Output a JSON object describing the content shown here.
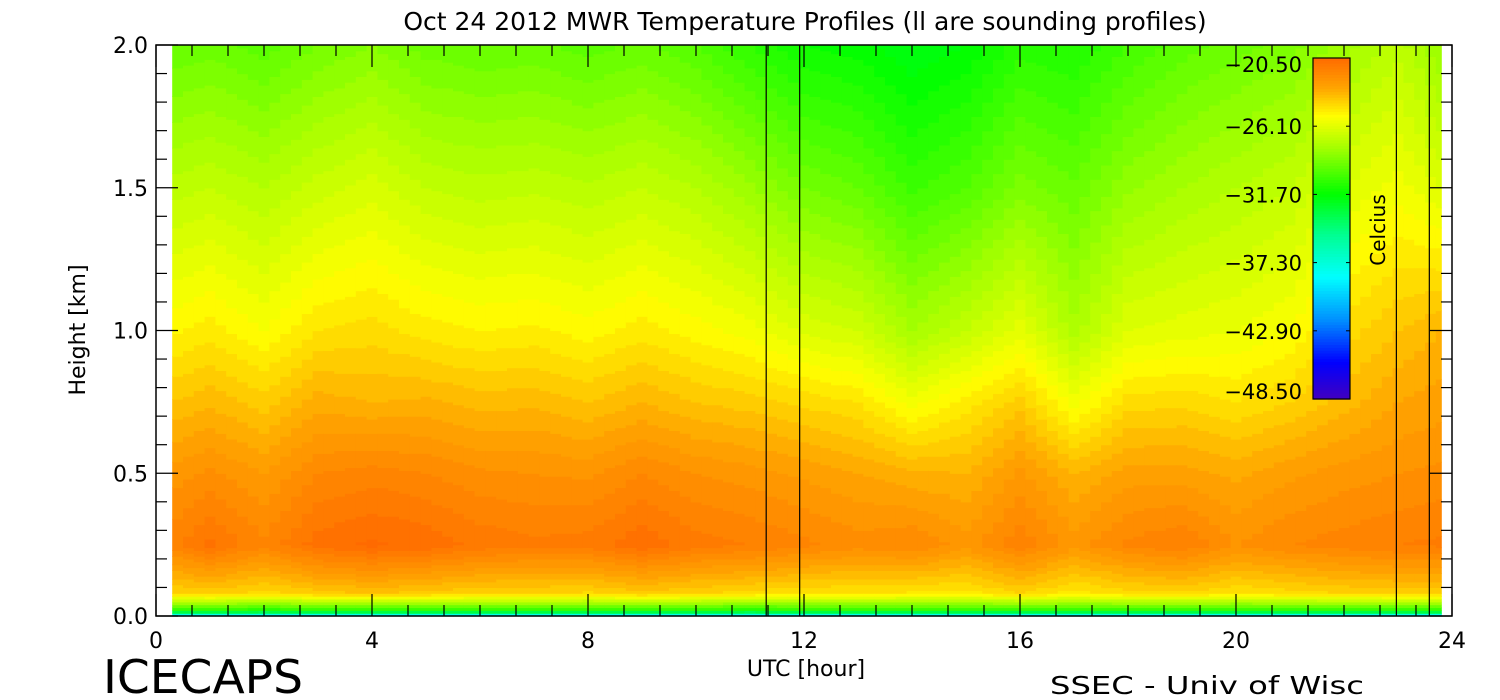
{
  "chart_data": {
    "type": "heatmap",
    "title": "Oct 24 2012 MWR Temperature Profiles (ll are sounding profiles)",
    "xlabel": "UTC [hour]",
    "ylabel": "Height [km]",
    "xlim": [
      0,
      24
    ],
    "ylim": [
      0,
      2.0
    ],
    "x_ticks": [
      "0",
      "4",
      "8",
      "12",
      "16",
      "20",
      "24"
    ],
    "y_ticks": [
      "0.0",
      "0.5",
      "1.0",
      "1.5",
      "2.0"
    ],
    "colorbar": {
      "label": "Celcius",
      "range": [
        -48.5,
        -20.5
      ],
      "ticks": [
        "-20.50",
        "-26.10",
        "-31.70",
        "-37.30",
        "-42.90",
        "-48.50"
      ]
    },
    "sounding_profiles": [
      [
        11.3,
        11.92
      ],
      [
        22.97,
        23.58
      ]
    ],
    "times": [
      0.3,
      1,
      2,
      3,
      4,
      5,
      6,
      7,
      8,
      9,
      10,
      11,
      12,
      13,
      14,
      15,
      16,
      17,
      18,
      19,
      20,
      21,
      22,
      23,
      23.8
    ],
    "heights": [
      0,
      0.02,
      0.08,
      0.25,
      0.5,
      0.75,
      1.0,
      1.5,
      2.0
    ],
    "temperature": [
      [
        -40,
        -40,
        -40,
        -40,
        -40,
        -40,
        -40,
        -40,
        -40,
        -40,
        -40,
        -40,
        -40,
        -40,
        -40,
        -40,
        -40,
        -40,
        -40,
        -40,
        -40,
        -40,
        -40,
        -40,
        -40
      ],
      [
        -31,
        -31,
        -31.5,
        -31,
        -31,
        -31,
        -31,
        -31,
        -31,
        -31,
        -31,
        -31.5,
        -31,
        -31,
        -31,
        -31,
        -31,
        -31,
        -31,
        -31,
        -31,
        -31,
        -31,
        -31,
        -31
      ],
      [
        -24.5,
        -24.3,
        -24.6,
        -24.2,
        -24,
        -24.2,
        -24.4,
        -24.4,
        -24.5,
        -24.2,
        -24.4,
        -24.6,
        -24.8,
        -24.8,
        -24.9,
        -25,
        -24.4,
        -25,
        -24.6,
        -24.5,
        -24.8,
        -24.6,
        -24.4,
        -24.3,
        -24.3
      ],
      [
        -21.8,
        -21.1,
        -21.9,
        -21,
        -20.7,
        -20.9,
        -21.3,
        -21.5,
        -21.4,
        -20.9,
        -21.4,
        -21.6,
        -21.9,
        -22.2,
        -22,
        -22.6,
        -21.7,
        -22.6,
        -21.9,
        -21.6,
        -22.4,
        -22,
        -21.8,
        -21.6,
        -21.5
      ],
      [
        -22.6,
        -22.3,
        -22.8,
        -22,
        -21.8,
        -22,
        -22.3,
        -22.4,
        -22.5,
        -22,
        -22.4,
        -22.6,
        -22.9,
        -23.2,
        -23.5,
        -23.6,
        -22.7,
        -23.6,
        -23,
        -23,
        -23.3,
        -22.9,
        -22.6,
        -22.4,
        -22.3
      ],
      [
        -24,
        -23.7,
        -24.2,
        -23.4,
        -23.6,
        -23.5,
        -23.8,
        -23.7,
        -24,
        -23.6,
        -24,
        -24.2,
        -24.5,
        -24.8,
        -25.8,
        -25,
        -24.2,
        -25.8,
        -24.6,
        -24.5,
        -24.8,
        -24.4,
        -23.8,
        -23.2,
        -23
      ],
      [
        -25.3,
        -25,
        -25.6,
        -24.8,
        -24.6,
        -25,
        -25.2,
        -25.1,
        -25.4,
        -25,
        -25.4,
        -25.8,
        -26.5,
        -26.8,
        -28,
        -27.2,
        -26.2,
        -27.8,
        -26.4,
        -26.2,
        -26,
        -25.6,
        -24.6,
        -24,
        -23.6
      ],
      [
        -27.4,
        -27.2,
        -27.6,
        -27,
        -26.6,
        -27.2,
        -27.4,
        -27.3,
        -27.5,
        -27.2,
        -27.6,
        -28.3,
        -29.2,
        -29.6,
        -30.5,
        -30,
        -29,
        -29.5,
        -28.5,
        -28,
        -27.6,
        -27.2,
        -26.4,
        -25.8,
        -26.4
      ],
      [
        -29.6,
        -29.4,
        -29.8,
        -29.2,
        -28.8,
        -29.4,
        -29.6,
        -29.5,
        -29.8,
        -29.5,
        -30,
        -30.8,
        -31.6,
        -31.8,
        -32.4,
        -32,
        -31,
        -31.2,
        -30.4,
        -29.8,
        -29.4,
        -29,
        -28.2,
        -27.4,
        -28.4
      ]
    ]
  },
  "footer": {
    "logo": "ICECAPS",
    "credit": "SSEC - Univ of Wisc"
  },
  "colors": {
    "scale": [
      [
        -20.5,
        "#ff6a00"
      ],
      [
        -23,
        "#ffa500"
      ],
      [
        -25.3,
        "#ffff00"
      ],
      [
        -28,
        "#a0ff00"
      ],
      [
        -31.7,
        "#00ff00"
      ],
      [
        -35,
        "#00ff90"
      ],
      [
        -38.5,
        "#00ffff"
      ],
      [
        -42,
        "#0090ff"
      ],
      [
        -45.5,
        "#0000ff"
      ],
      [
        -48.5,
        "#4000c0"
      ]
    ]
  }
}
